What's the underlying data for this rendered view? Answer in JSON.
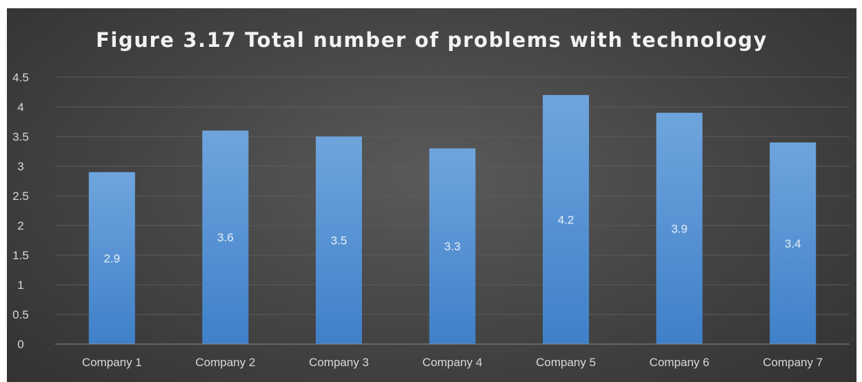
{
  "chart_data": {
    "type": "bar",
    "title": "Figure 3.17 Total number of problems with technology",
    "categories": [
      "Company 1",
      "Company 2",
      "Company 3",
      "Company 4",
      "Company 5",
      "Company 6",
      "Company 7"
    ],
    "values": [
      2.9,
      3.6,
      3.5,
      3.3,
      4.2,
      3.9,
      3.4
    ],
    "value_labels": [
      "2.9",
      "3.6",
      "3.5",
      "3.3",
      "4.2",
      "3.9",
      "3.4"
    ],
    "y_ticks": [
      "0",
      "0.5",
      "1",
      "1.5",
      "2",
      "2.5",
      "3",
      "3.5",
      "4",
      "4.5"
    ],
    "ylim": [
      0,
      4.5
    ],
    "grid": true,
    "legend": "none",
    "colors": {
      "bar_top": "#6fa5dd",
      "bar_bottom": "#3f80c9",
      "gridline": "#5c5c5c",
      "axis": "#8a8a8a"
    }
  }
}
